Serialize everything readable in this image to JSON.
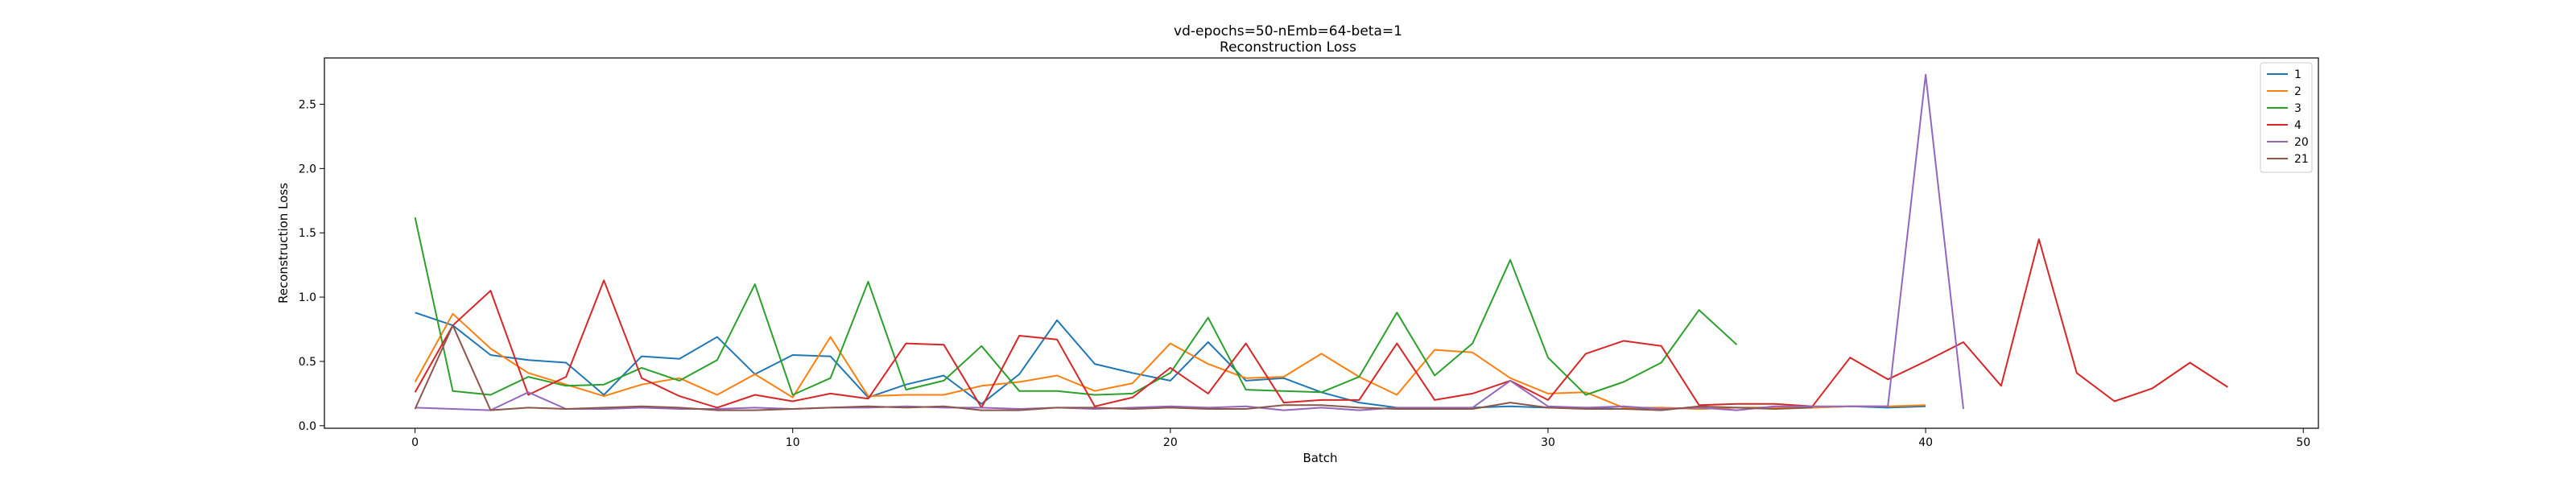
{
  "chart_data": {
    "type": "line",
    "title": "vd-epochs=50-nEmb=64-beta=1",
    "subtitle": "Reconstruction Loss",
    "xlabel": "Batch",
    "ylabel": "Reconstruction Loss",
    "xlim": [
      -2.4,
      50.4
    ],
    "ylim": [
      -0.02,
      2.86
    ],
    "xticks": [
      0,
      10,
      20,
      30,
      40,
      50
    ],
    "yticks": [
      0.0,
      0.5,
      1.0,
      1.5,
      2.0,
      2.5
    ],
    "ytick_labels": [
      "0.0",
      "0.5",
      "1.0",
      "1.5",
      "2.0",
      "2.5"
    ],
    "grid": false,
    "legend_position": "top-right",
    "series": [
      {
        "name": "1",
        "color": "#1f77b4",
        "values": [
          0.88,
          0.78,
          0.55,
          0.51,
          0.49,
          0.24,
          0.54,
          0.52,
          0.69,
          0.4,
          0.55,
          0.54,
          0.22,
          0.32,
          0.39,
          0.17,
          0.4,
          0.82,
          0.48,
          0.41,
          0.35,
          0.65,
          0.35,
          0.37,
          0.26,
          0.18,
          0.14,
          0.13,
          0.14,
          0.15,
          0.14,
          0.14,
          0.13,
          0.14,
          0.13,
          0.14,
          0.14,
          0.14,
          0.15,
          0.14,
          0.15
        ]
      },
      {
        "name": "2",
        "color": "#ff7f0e",
        "values": [
          0.34,
          0.87,
          0.6,
          0.41,
          0.32,
          0.23,
          0.32,
          0.37,
          0.24,
          0.4,
          0.22,
          0.69,
          0.23,
          0.24,
          0.24,
          0.31,
          0.34,
          0.39,
          0.27,
          0.33,
          0.64,
          0.48,
          0.37,
          0.38,
          0.56,
          0.38,
          0.24,
          0.59,
          0.57,
          0.37,
          0.25,
          0.26,
          0.14,
          0.14,
          0.13,
          0.14,
          0.14,
          0.14,
          0.15,
          0.15,
          0.16
        ]
      },
      {
        "name": "3",
        "color": "#2ca02c",
        "values": [
          1.62,
          0.27,
          0.24,
          0.38,
          0.31,
          0.32,
          0.45,
          0.35,
          0.51,
          1.1,
          0.24,
          0.37,
          1.12,
          0.28,
          0.35,
          0.62,
          0.27,
          0.27,
          0.24,
          0.25,
          0.41,
          0.84,
          0.28,
          0.27,
          0.26,
          0.38,
          0.88,
          0.39,
          0.64,
          1.29,
          0.53,
          0.24,
          0.34,
          0.49,
          0.9,
          0.63
        ]
      },
      {
        "name": "4",
        "color": "#d62728",
        "values": [
          0.26,
          0.78,
          1.05,
          0.24,
          0.38,
          1.13,
          0.37,
          0.23,
          0.14,
          0.24,
          0.19,
          0.25,
          0.21,
          0.64,
          0.63,
          0.14,
          0.7,
          0.67,
          0.15,
          0.22,
          0.45,
          0.25,
          0.64,
          0.18,
          0.2,
          0.2,
          0.64,
          0.2,
          0.25,
          0.35,
          0.2,
          0.56,
          0.66,
          0.62,
          0.16,
          0.17,
          0.17,
          0.15,
          0.53,
          0.36,
          0.5,
          0.65,
          0.31,
          1.45,
          0.41,
          0.19,
          0.29,
          0.49,
          0.3
        ]
      },
      {
        "name": "20",
        "color": "#9467bd",
        "values": [
          0.14,
          0.13,
          0.12,
          0.26,
          0.13,
          0.13,
          0.14,
          0.13,
          0.13,
          0.14,
          0.13,
          0.14,
          0.14,
          0.15,
          0.14,
          0.14,
          0.13,
          0.14,
          0.13,
          0.14,
          0.15,
          0.14,
          0.15,
          0.12,
          0.14,
          0.12,
          0.14,
          0.14,
          0.14,
          0.35,
          0.15,
          0.14,
          0.15,
          0.13,
          0.14,
          0.12,
          0.15,
          0.15,
          0.15,
          0.15,
          2.73,
          0.13
        ]
      },
      {
        "name": "21",
        "color": "#8c564b",
        "values": [
          0.13,
          0.78,
          0.12,
          0.14,
          0.13,
          0.14,
          0.15,
          0.14,
          0.12,
          0.12,
          0.13,
          0.14,
          0.15,
          0.14,
          0.15,
          0.12,
          0.12,
          0.14,
          0.14,
          0.13,
          0.14,
          0.13,
          0.13,
          0.16,
          0.16,
          0.14,
          0.13,
          0.13,
          0.13,
          0.18,
          0.14,
          0.13,
          0.13,
          0.12,
          0.15,
          0.14,
          0.13,
          0.14
        ]
      }
    ]
  }
}
